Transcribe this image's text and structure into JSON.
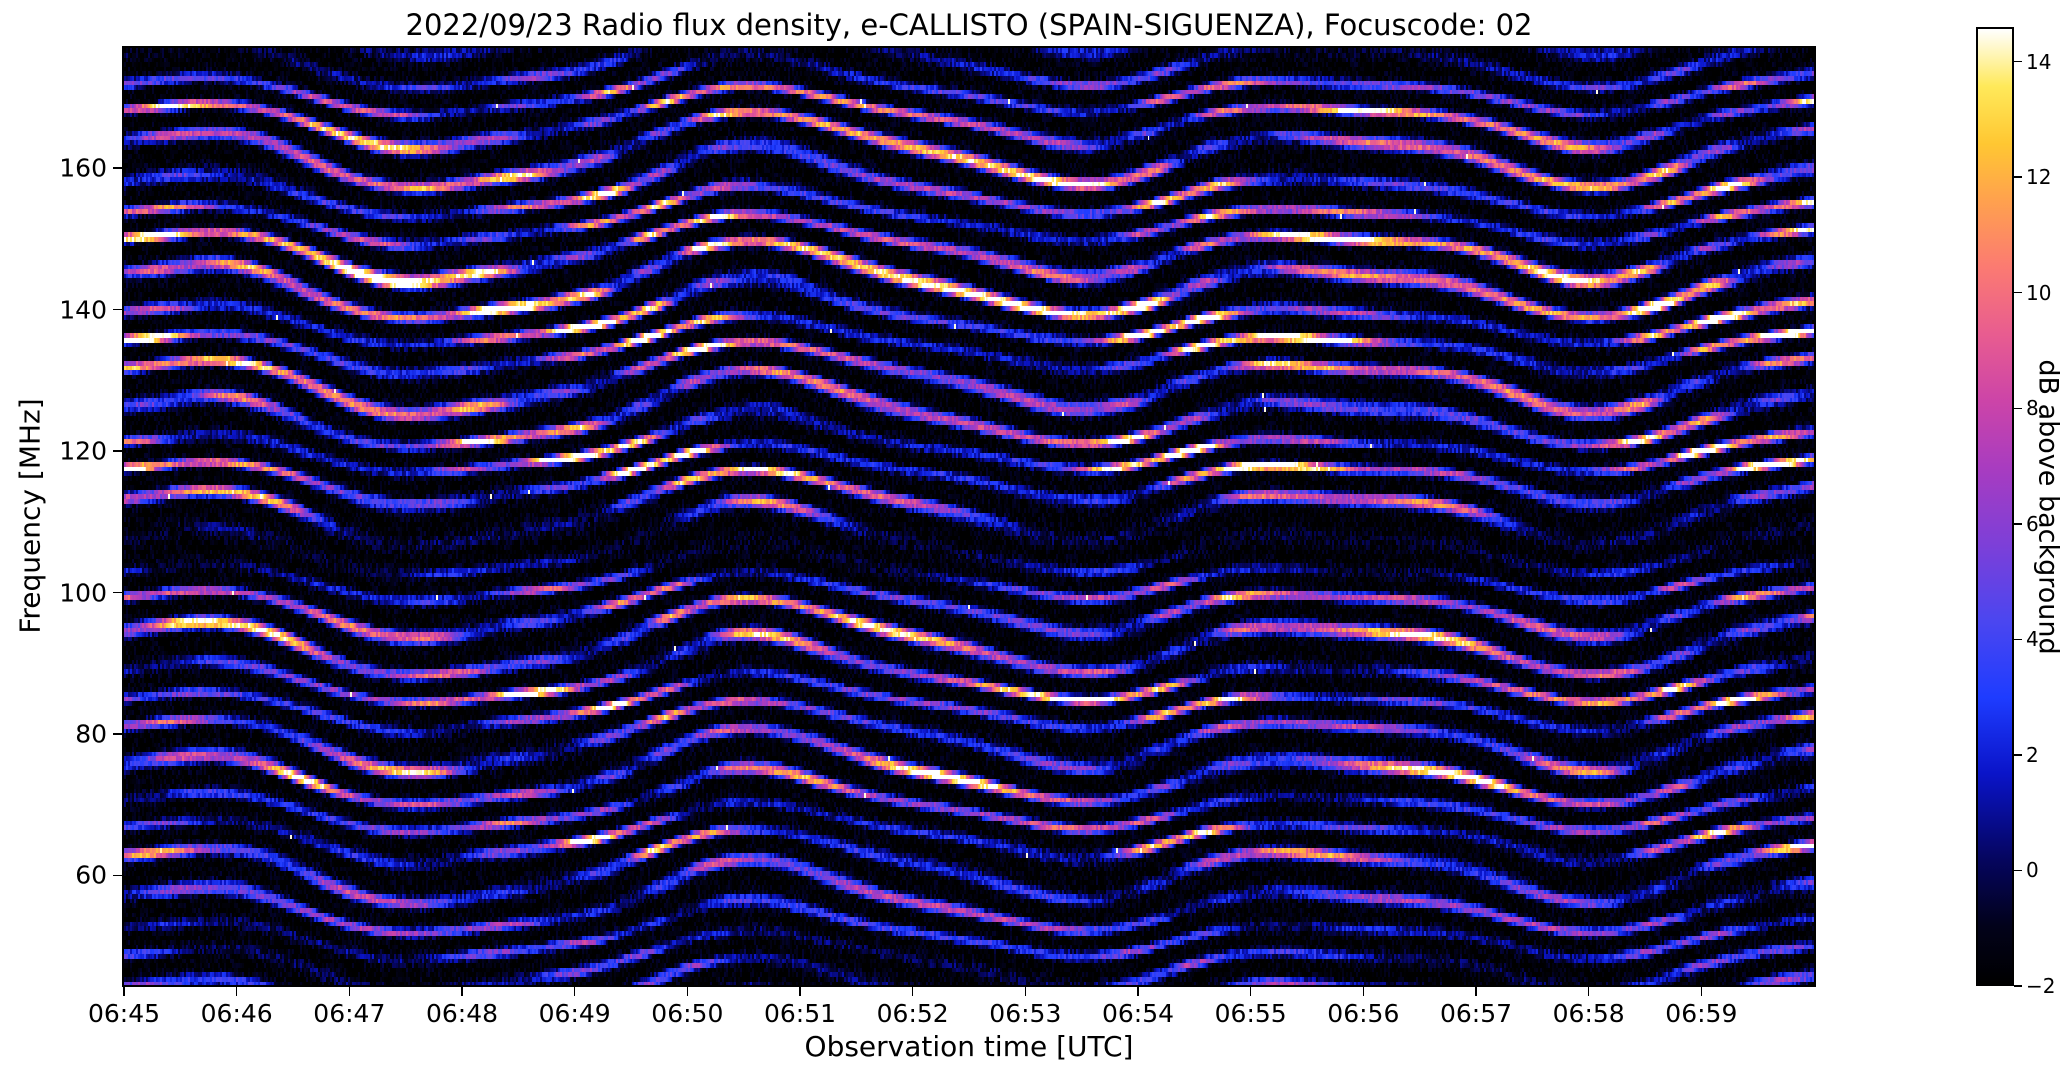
{
  "figure": {
    "background": "#ffffff",
    "date": "2022/09/23",
    "instrument": "e-CALLISTO (SPAIN-SIGUENZA)",
    "focuscode": "02"
  },
  "chart_data": {
    "type": "heatmap",
    "title": "2022/09/23  Radio flux density, e-CALLISTO (SPAIN-SIGUENZA), Focuscode: 02",
    "xlabel": "Observation time [UTC]",
    "ylabel": "Frequency [MHz]",
    "x_ticks": [
      "06:45",
      "06:46",
      "06:47",
      "06:48",
      "06:49",
      "06:50",
      "06:51",
      "06:52",
      "06:53",
      "06:54",
      "06:55",
      "06:56",
      "06:57",
      "06:58",
      "06:59"
    ],
    "x_range_utc": [
      "06:45:00",
      "07:00:00"
    ],
    "y_ticks": [
      "160",
      "140",
      "120",
      "100",
      "80",
      "60"
    ],
    "y_range_mhz": [
      44.5,
      177
    ],
    "grid": false,
    "legend": "none",
    "colorbar": {
      "label": "dB above background",
      "tick_labels": [
        "14",
        "12",
        "10",
        "8",
        "6",
        "4",
        "2",
        "0",
        "−2"
      ],
      "range": [
        -2,
        14.6
      ],
      "colormap_stops": [
        [
          0.0,
          "#000000"
        ],
        [
          0.06,
          "#02021a"
        ],
        [
          0.13,
          "#05055e"
        ],
        [
          0.22,
          "#0a14c8"
        ],
        [
          0.3,
          "#1e3cff"
        ],
        [
          0.38,
          "#4b46f0"
        ],
        [
          0.46,
          "#7d3fd8"
        ],
        [
          0.54,
          "#a83cc0"
        ],
        [
          0.61,
          "#cc44a8"
        ],
        [
          0.68,
          "#e85c90"
        ],
        [
          0.75,
          "#fb7a72"
        ],
        [
          0.82,
          "#ffa14e"
        ],
        [
          0.88,
          "#ffc732"
        ],
        [
          0.94,
          "#ffe95a"
        ],
        [
          1.0,
          "#ffffff"
        ]
      ]
    },
    "description": "Dynamic radio spectrogram (45-177 MHz, 06:45-07:00 UTC) dominated by horizontal interference fringes spaced ~4.6 MHz that wobble slowly in time, forming wavy diagonal stripe patterns; bright yellow/white bands near 119, 138 and 147 MHz; dark low-signal band near 103-110 MHz; speckled noise throughout.",
    "pattern": {
      "stripe_spacing_mhz": 4.6,
      "channel_width_mhz": 0.65,
      "duration_s": 900,
      "wobble_terms": [
        [
          305,
          3.4,
          -2.2
        ],
        [
          560,
          1.5,
          0.6
        ],
        [
          130,
          0.7,
          1.5
        ]
      ],
      "phase_jitter": [
        0.9,
        0.37
      ],
      "envelope_base": 0.5,
      "envelope_bumps": [
        [
          65,
          1.5,
          0.5
        ],
        [
          74,
          1.5,
          0.45
        ],
        [
          85,
          2,
          0.5
        ],
        [
          95,
          2,
          0.4
        ],
        [
          100,
          1.3,
          0.35
        ],
        [
          113,
          1.5,
          0.3
        ],
        [
          119,
          2,
          0.85
        ],
        [
          124,
          1.3,
          0.3
        ],
        [
          128,
          1.5,
          0.45
        ],
        [
          133,
          1.5,
          0.35
        ],
        [
          138,
          2.4,
          0.9
        ],
        [
          143,
          1.5,
          0.4
        ],
        [
          147,
          2.4,
          0.85
        ],
        [
          152,
          1.5,
          0.3
        ],
        [
          157,
          2,
          0.45
        ],
        [
          162,
          1.5,
          0.3
        ],
        [
          166,
          1.5,
          0.35
        ],
        [
          170,
          2,
          0.35
        ]
      ],
      "dark_band": [
        106.5,
        3.2,
        0.85
      ],
      "burst_terms": [
        [
          305,
          -1.6,
          0.35,
          0.5
        ],
        [
          89,
          0.0,
          1.3,
          0.28
        ]
      ],
      "noise_db": 2.8
    }
  }
}
